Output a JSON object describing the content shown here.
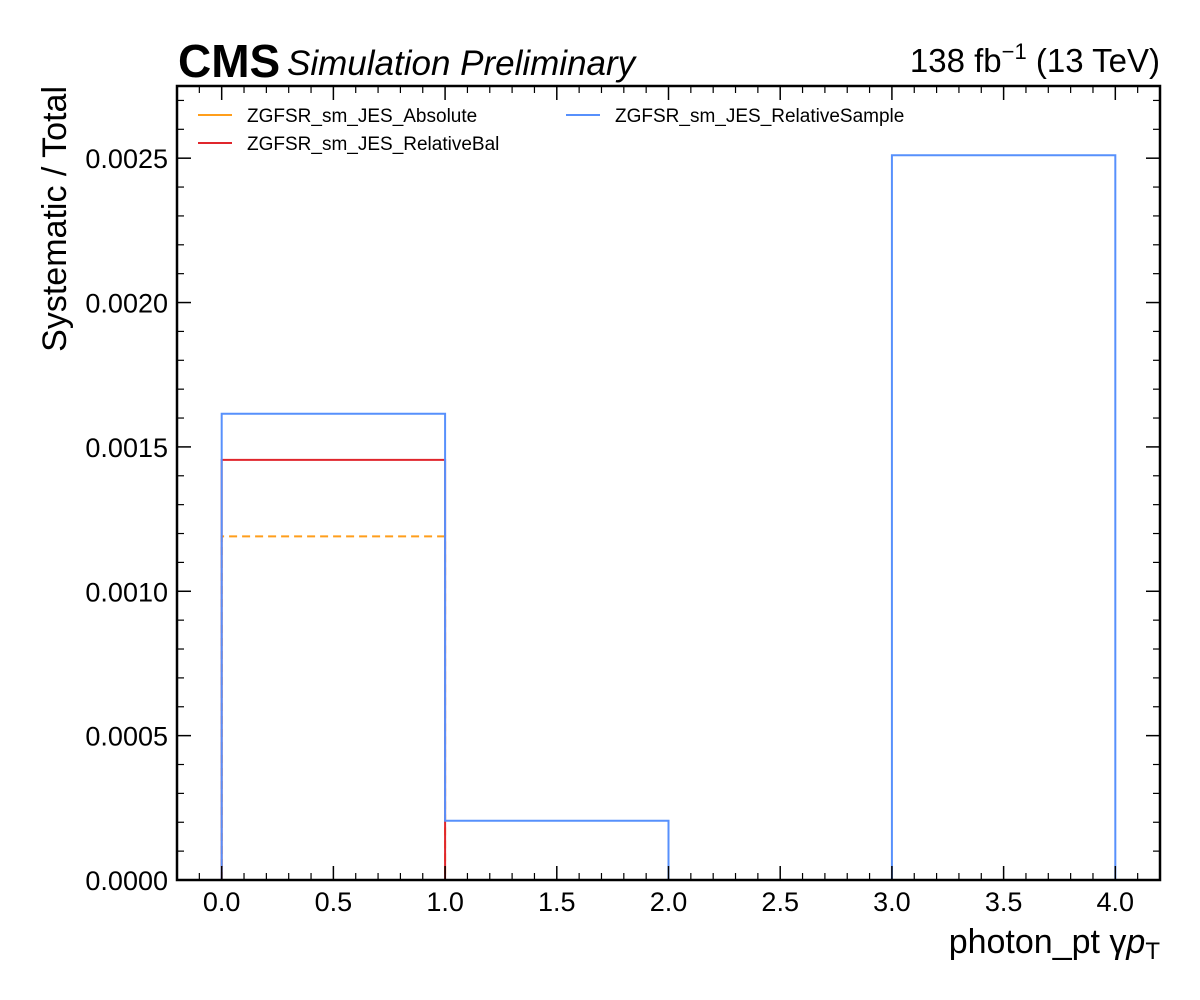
{
  "header": {
    "experiment": "CMS",
    "status": "Simulation Preliminary",
    "lumi_value": "138 fb",
    "lumi_exp": "−1",
    "energy": "(13 TeV)"
  },
  "chart_data": {
    "type": "line",
    "style": "step-histogram",
    "xlabel": "photon_pt   γ",
    "xlabel_math": "p",
    "xlabel_sub": "T",
    "ylabel": "Systematic / Total",
    "xlim": [
      -0.2,
      4.2
    ],
    "ylim": [
      0,
      0.00275
    ],
    "xticks": [
      0.0,
      0.5,
      1.0,
      1.5,
      2.0,
      2.5,
      3.0,
      3.5,
      4.0
    ],
    "xtick_labels": [
      "0.0",
      "0.5",
      "1.0",
      "1.5",
      "2.0",
      "2.5",
      "3.0",
      "3.5",
      "4.0"
    ],
    "yticks": [
      0,
      0.0005,
      0.001,
      0.0015,
      0.002,
      0.0025
    ],
    "ytick_labels": [
      "0.0000",
      "0.0005",
      "0.0010",
      "0.0015",
      "0.0020",
      "0.0025"
    ],
    "bin_edges": [
      0,
      1,
      2,
      3,
      4
    ],
    "legend_position": "top-left",
    "legend_columns": 2,
    "series": [
      {
        "name": "ZGFSR_sm_JES_Absolute",
        "color": "#ff9e1b",
        "dashed": true,
        "values": [
          0.00119,
          0,
          0,
          0
        ]
      },
      {
        "name": "ZGFSR_sm_JES_RelativeBal",
        "color": "#e0262c",
        "dashed": false,
        "values": [
          0.001455,
          0,
          0,
          0
        ]
      },
      {
        "name": "ZGFSR_sm_JES_RelativeSample",
        "color": "#5790fc",
        "dashed": false,
        "values": [
          0.001615,
          0.000205,
          0,
          0.00251
        ]
      }
    ]
  }
}
